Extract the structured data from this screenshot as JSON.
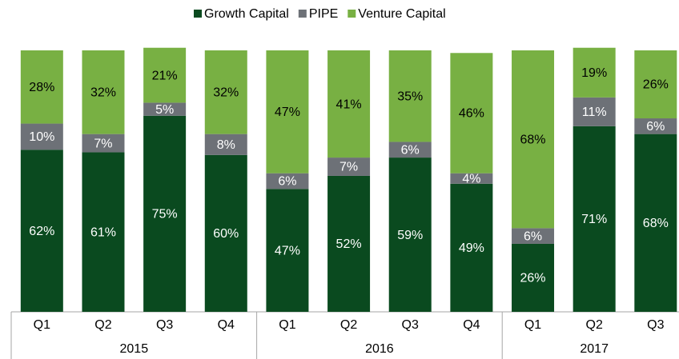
{
  "chart_data": {
    "type": "stacked_bar",
    "groups": [
      {
        "name": "2015",
        "categories": [
          "Q1",
          "Q2",
          "Q3",
          "Q4"
        ]
      },
      {
        "name": "2016",
        "categories": [
          "Q1",
          "Q2",
          "Q3",
          "Q4"
        ]
      },
      {
        "name": "2017",
        "categories": [
          "Q1",
          "Q2",
          "Q3"
        ]
      }
    ],
    "series": [
      {
        "name": "Growth Capital",
        "color": "#0a4a1f",
        "label_color": "#ffffff",
        "values": [
          62,
          61,
          75,
          60,
          47,
          52,
          59,
          49,
          26,
          71,
          68
        ],
        "value_labels": [
          "62%",
          "61%",
          "75%",
          "60%",
          "47%",
          "52%",
          "59%",
          "49%",
          "26%",
          "71%",
          "68%"
        ]
      },
      {
        "name": "PIPE",
        "color": "#6d7177",
        "label_color": "#ffffff",
        "values": [
          10,
          7,
          5,
          8,
          6,
          7,
          6,
          4,
          6,
          11,
          6
        ],
        "value_labels": [
          "10%",
          "7%",
          "5%",
          "8%",
          "6%",
          "7%",
          "6%",
          "4%",
          "6%",
          "11%",
          "6%"
        ]
      },
      {
        "name": "Venture Capital",
        "color": "#78b043",
        "label_color": "#000000",
        "values": [
          28,
          32,
          21,
          32,
          47,
          41,
          35,
          46,
          68,
          19,
          26
        ],
        "value_labels": [
          "28%",
          "32%",
          "21%",
          "32%",
          "47%",
          "41%",
          "35%",
          "46%",
          "68%",
          "19%",
          "26%"
        ]
      }
    ],
    "ylim": [
      0,
      100
    ],
    "legend": "top"
  }
}
